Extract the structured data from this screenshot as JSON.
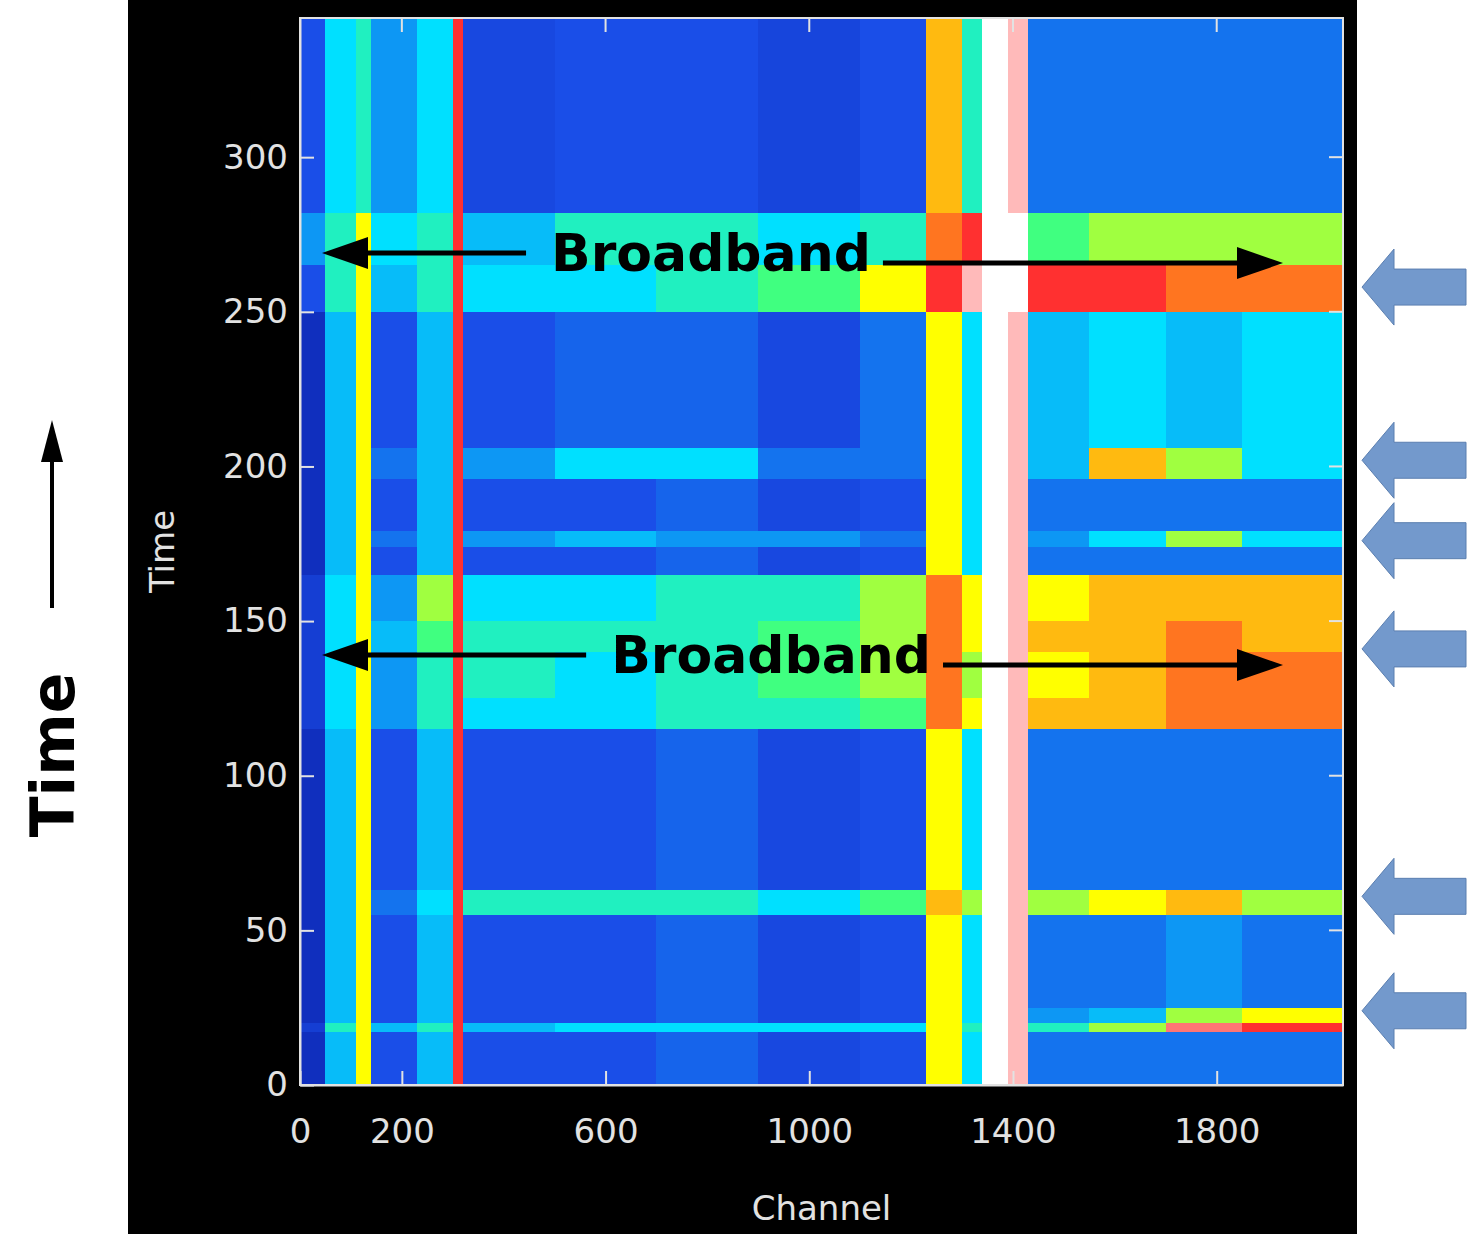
{
  "chart_data": {
    "type": "heatmap",
    "x_label": "Channel",
    "y_label": "Time",
    "outer_label": "Time",
    "xlim": [
      0,
      2048
    ],
    "ylim": [
      0,
      345
    ],
    "xticks": [
      0,
      200,
      600,
      1000,
      1400,
      1800
    ],
    "yticks": [
      0,
      50,
      100,
      150,
      200,
      250,
      300
    ],
    "zlim": [
      0,
      10
    ],
    "x_edges": [
      0,
      50,
      110,
      140,
      230,
      300,
      320,
      500,
      700,
      900,
      1100,
      1230,
      1300,
      1340,
      1390,
      1430,
      1550,
      1700,
      1850,
      2048
    ],
    "y_edges": [
      0,
      5,
      17,
      20,
      25,
      55,
      63,
      115,
      125,
      140,
      150,
      165,
      174,
      179,
      196,
      206,
      250,
      265,
      282,
      345
    ],
    "cells": [
      [
        1.5,
        4,
        6.5,
        2.5,
        4,
        8,
        2.5,
        2.5,
        2.8,
        2.3,
        2.5,
        6.5,
        4.5,
        9.5,
        9,
        3,
        3,
        3,
        3
      ],
      [
        1.5,
        4,
        6.5,
        2.5,
        4,
        8,
        2.5,
        2.5,
        2.8,
        2.3,
        2.5,
        6.5,
        4.5,
        9.5,
        9,
        3,
        3,
        3,
        3
      ],
      [
        2,
        5,
        6.5,
        4,
        5,
        8,
        4,
        4.5,
        4.5,
        4.5,
        4.5,
        6.5,
        5,
        9.5,
        9,
        5,
        6,
        8.5,
        8
      ],
      [
        1.5,
        4,
        6.5,
        2.5,
        4,
        8,
        2.5,
        2.5,
        2.8,
        2.3,
        2.5,
        6.5,
        4.5,
        9.5,
        9,
        3.5,
        4,
        6,
        6.5
      ],
      [
        1.5,
        4,
        6.5,
        2.5,
        4,
        8,
        2.5,
        2.5,
        2.8,
        2.3,
        2.5,
        6.5,
        4.5,
        9.5,
        9,
        3,
        3,
        3.5,
        3
      ],
      [
        1.5,
        4,
        6.5,
        3,
        4.5,
        8,
        5,
        5,
        5,
        4.5,
        5.5,
        7,
        6,
        9.5,
        9,
        6,
        6.5,
        7,
        6
      ],
      [
        1.5,
        4,
        6.5,
        2.5,
        4,
        8,
        2.5,
        2.5,
        2.8,
        2.3,
        2.5,
        6.5,
        4.5,
        9.5,
        9,
        3,
        3,
        3,
        3
      ],
      [
        2,
        4.5,
        6.5,
        3.5,
        5,
        8,
        4.5,
        4.5,
        5,
        5,
        5.5,
        7.5,
        6.5,
        9.5,
        9,
        7,
        7,
        7.5,
        7.5
      ],
      [
        2,
        4.5,
        6.5,
        3.5,
        5,
        8,
        5,
        4.5,
        5,
        5.5,
        6,
        7.5,
        6,
        9.5,
        9,
        6.5,
        7,
        7.5,
        7.5
      ],
      [
        2,
        4.5,
        6.5,
        4,
        5.5,
        8,
        5,
        5,
        5,
        5.5,
        6,
        7.5,
        6.5,
        9.5,
        9,
        7,
        7,
        7.5,
        7
      ],
      [
        2,
        4.5,
        6.5,
        3.5,
        6,
        8,
        4.5,
        4.5,
        5,
        5,
        6,
        7.5,
        6.5,
        9.5,
        9,
        6.5,
        7,
        7,
        7
      ],
      [
        1.5,
        4,
        6.5,
        2.5,
        4,
        8,
        2.5,
        2.5,
        2.8,
        2.3,
        2.5,
        6.5,
        4.5,
        9.5,
        9,
        3,
        3,
        3,
        3
      ],
      [
        1.5,
        4,
        6.5,
        3,
        4,
        8,
        3.5,
        4,
        3.5,
        3.5,
        3,
        6.5,
        4.5,
        9.5,
        9,
        3.5,
        4.5,
        6,
        4.5
      ],
      [
        1.5,
        4,
        6.5,
        2.5,
        4,
        8,
        2.5,
        2.5,
        2.8,
        2.3,
        2.5,
        6.5,
        4.5,
        9.5,
        9,
        3,
        3,
        3,
        3
      ],
      [
        1.5,
        4,
        6.5,
        3,
        4,
        8,
        3.5,
        4.5,
        4.5,
        3,
        3,
        6.5,
        4.5,
        9.5,
        9,
        4,
        7,
        6,
        4.5
      ],
      [
        1.5,
        4,
        6.5,
        2.5,
        4,
        8,
        2.5,
        2.8,
        2.8,
        2.3,
        3,
        6.5,
        4.5,
        9.5,
        9,
        4,
        4.5,
        4,
        4.5
      ],
      [
        2.5,
        5,
        6.5,
        4,
        5,
        8,
        4.5,
        4.5,
        5,
        5.5,
        6.5,
        8,
        9,
        10,
        10,
        8,
        8,
        7.5,
        7.5
      ],
      [
        3.5,
        5,
        6.5,
        4.5,
        5,
        8,
        4,
        5,
        5,
        4.5,
        5,
        7.5,
        8,
        10,
        10,
        5.5,
        6,
        6,
        6
      ],
      [
        2.5,
        4.5,
        5,
        3.5,
        4.5,
        8,
        2.3,
        2.5,
        2.5,
        2.2,
        2.5,
        7,
        5,
        9.5,
        9,
        3,
        3,
        3,
        3
      ]
    ],
    "annotations": [
      {
        "text": "Broadband",
        "channel": 807,
        "time": 269
      },
      {
        "text": "Broadband",
        "channel": 925,
        "time": 139
      }
    ],
    "events": [
      258,
      202,
      176,
      141,
      61,
      24
    ]
  }
}
